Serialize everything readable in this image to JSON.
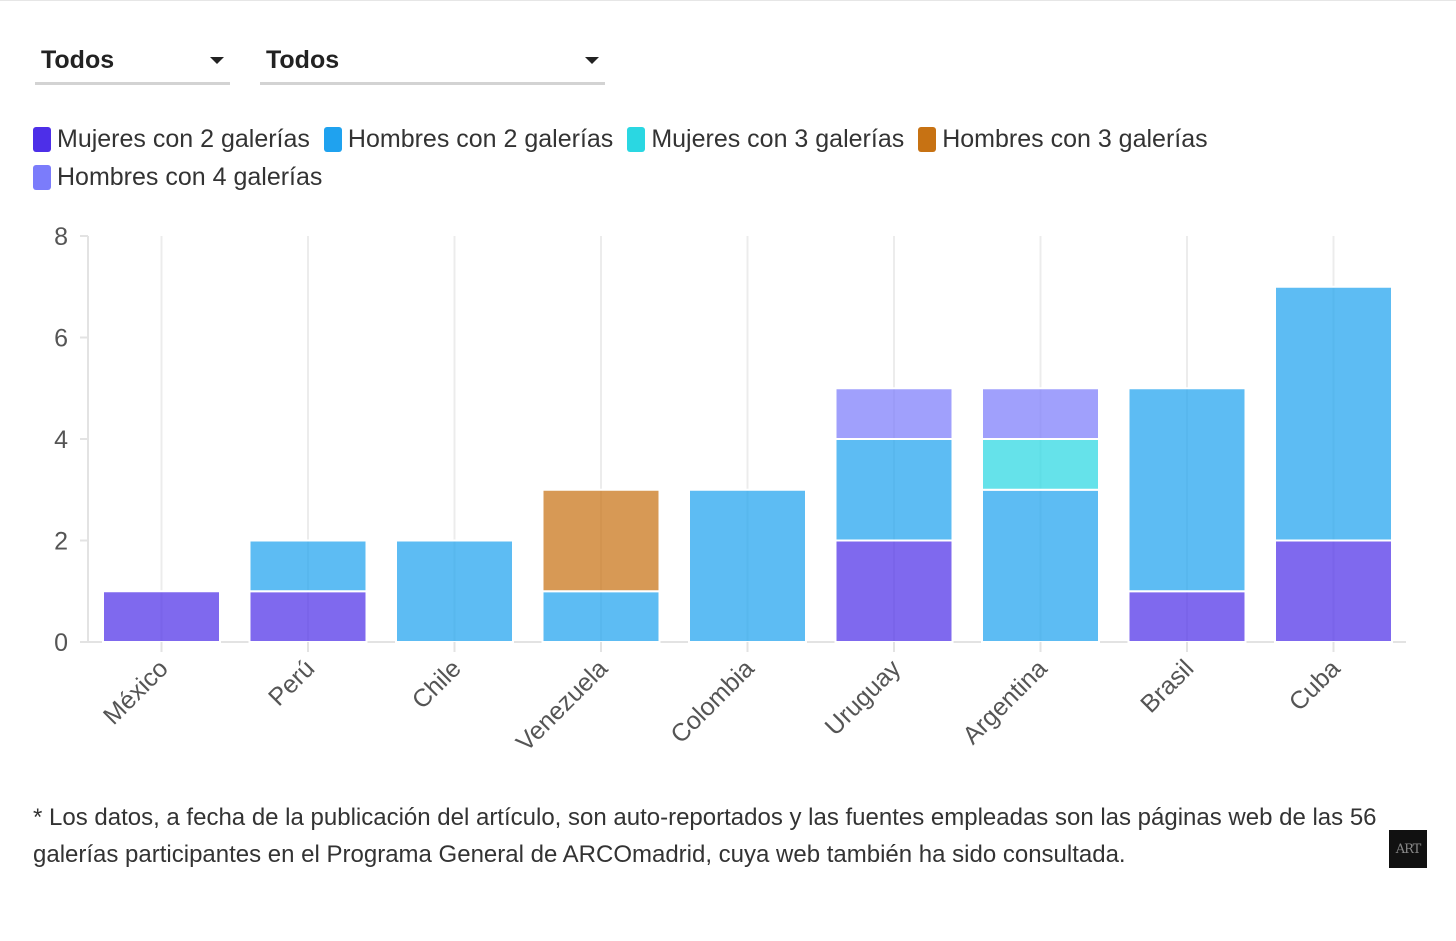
{
  "filters": [
    {
      "selected": "Todos"
    },
    {
      "selected": "Todos"
    }
  ],
  "legend": [
    {
      "label": "Mujeres con 2 galerías",
      "color": "#4d2fe8"
    },
    {
      "label": "Hombres con 2 galerías",
      "color": "#1fa2ef"
    },
    {
      "label": "Mujeres con 3 galerías",
      "color": "#2ad7e2"
    },
    {
      "label": "Hombres con 3 galerías",
      "color": "#c77213"
    },
    {
      "label": "Hombres con 4 galerías",
      "color": "#7b7cfb"
    }
  ],
  "chart_data": {
    "type": "bar",
    "stacked": true,
    "categories": [
      "México",
      "Perú",
      "Chile",
      "Venezuela",
      "Colombia",
      "Uruguay",
      "Argentina",
      "Brasil",
      "Cuba"
    ],
    "series": [
      {
        "name": "Mujeres con 2 galerías",
        "color": "#4d2fe8",
        "values": [
          1,
          1,
          0,
          0,
          0,
          2,
          0,
          1,
          2
        ]
      },
      {
        "name": "Hombres con 2 galerías",
        "color": "#1fa2ef",
        "values": [
          0,
          1,
          2,
          1,
          3,
          2,
          3,
          4,
          5
        ]
      },
      {
        "name": "Mujeres con 3 galerías",
        "color": "#2ad7e2",
        "values": [
          0,
          0,
          0,
          0,
          0,
          0,
          1,
          0,
          0
        ]
      },
      {
        "name": "Hombres con 3 galerías",
        "color": "#c77213",
        "values": [
          0,
          0,
          0,
          2,
          0,
          0,
          0,
          0,
          0
        ]
      },
      {
        "name": "Hombres con 4 galerías",
        "color": "#7b7cfb",
        "values": [
          0,
          0,
          0,
          0,
          0,
          1,
          1,
          0,
          0
        ]
      }
    ],
    "yticks": [
      0,
      2,
      4,
      6,
      8
    ],
    "ylim": [
      0,
      8
    ],
    "grid": true,
    "xlabel": "",
    "ylabel": ""
  },
  "footnote": "* Los datos, a fecha de la publicación del artículo, son auto-reportados y las fuentes empleadas son las páginas web de las 56 galerías participantes en el Programa General de ARCOmadrid, cuya web también ha sido consultada.",
  "logo_text": "ART"
}
